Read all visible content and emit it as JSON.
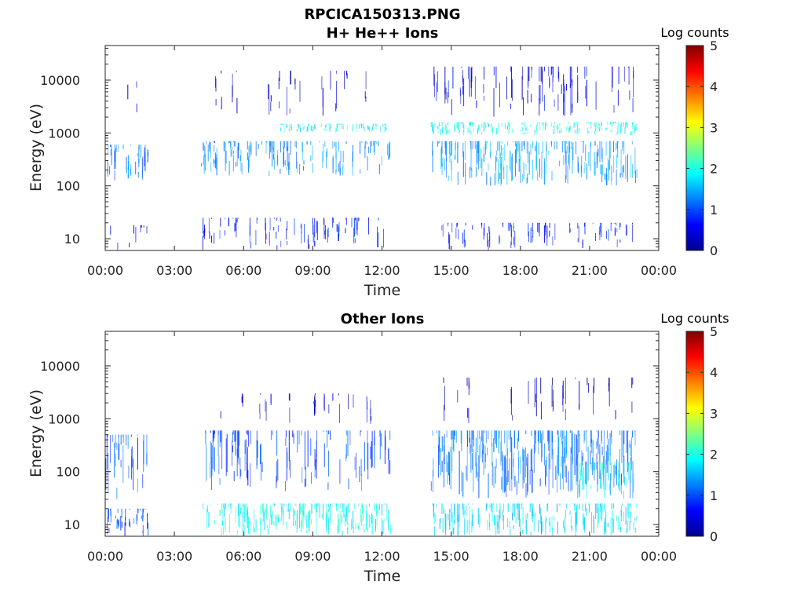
{
  "figure_title": "RPCICA150313.PNG",
  "colors": {
    "axis": "#262626",
    "background": "#ffffff"
  },
  "chart_data": [
    {
      "type": "heatmap",
      "title": "H+ He++ Ions",
      "xlabel": "Time",
      "ylabel": "Energy (eV)",
      "x_ticks": [
        "00:00",
        "03:00",
        "06:00",
        "09:00",
        "12:00",
        "15:00",
        "18:00",
        "21:00",
        "00:00"
      ],
      "x_range_hours": [
        0,
        24
      ],
      "y_scale": "log",
      "y_range_ev": [
        6,
        45000
      ],
      "y_ticks": [
        {
          "value": 10,
          "label": "10"
        },
        {
          "value": 100,
          "label": "100"
        },
        {
          "value": 1000,
          "label": "1000"
        },
        {
          "value": 10000,
          "label": "10000"
        }
      ],
      "colorbar": {
        "label": "Log counts",
        "ticks": [
          "0",
          "1",
          "2",
          "3",
          "4",
          "5"
        ],
        "range": [
          0,
          5
        ]
      },
      "data_gaps_hours": [
        [
          1.85,
          4.15
        ],
        [
          12.35,
          14.1
        ]
      ],
      "data_end_hour": 23.0,
      "bands": [
        {
          "t": [
            0.0,
            1.85
          ],
          "e": [
            6,
            18
          ],
          "logc": 0.6,
          "density": 0.25
        },
        {
          "t": [
            0.0,
            1.85
          ],
          "e": [
            120,
            600
          ],
          "logc": 1.2,
          "density": 0.6
        },
        {
          "t": [
            0.0,
            1.85
          ],
          "e": [
            1000,
            14000
          ],
          "logc": 0.4,
          "density": 0.15
        },
        {
          "t": [
            4.15,
            12.35
          ],
          "e": [
            6,
            25
          ],
          "logc": 0.7,
          "density": 0.4
        },
        {
          "t": [
            4.15,
            12.35
          ],
          "e": [
            150,
            700
          ],
          "logc": 1.3,
          "density": 0.55
        },
        {
          "t": [
            7.5,
            12.2
          ],
          "e": [
            1000,
            1500
          ],
          "logc": 1.9,
          "density": 0.5
        },
        {
          "t": [
            4.15,
            12.35
          ],
          "e": [
            2000,
            15000
          ],
          "logc": 0.3,
          "density": 0.15
        },
        {
          "t": [
            14.1,
            23.0
          ],
          "e": [
            6,
            20
          ],
          "logc": 0.7,
          "density": 0.35
        },
        {
          "t": [
            14.1,
            23.0
          ],
          "e": [
            100,
            700
          ],
          "logc": 1.4,
          "density": 0.7
        },
        {
          "t": [
            14.1,
            23.0
          ],
          "e": [
            900,
            1600
          ],
          "logc": 1.9,
          "density": 0.6
        },
        {
          "t": [
            14.1,
            23.0
          ],
          "e": [
            2000,
            18000
          ],
          "logc": 0.5,
          "density": 0.35
        }
      ]
    },
    {
      "type": "heatmap",
      "title": "Other Ions",
      "xlabel": "Time",
      "ylabel": "Energy (eV)",
      "x_ticks": [
        "00:00",
        "03:00",
        "06:00",
        "09:00",
        "12:00",
        "15:00",
        "18:00",
        "21:00",
        "00:00"
      ],
      "x_range_hours": [
        0,
        24
      ],
      "y_scale": "log",
      "y_range_ev": [
        6,
        45000
      ],
      "y_ticks": [
        {
          "value": 10,
          "label": "10"
        },
        {
          "value": 100,
          "label": "100"
        },
        {
          "value": 1000,
          "label": "1000"
        },
        {
          "value": 10000,
          "label": "10000"
        }
      ],
      "colorbar": {
        "label": "Log counts",
        "ticks": [
          "0",
          "1",
          "2",
          "3",
          "4",
          "5"
        ],
        "range": [
          0,
          5
        ]
      },
      "data_gaps_hours": [
        [
          1.85,
          4.15
        ],
        [
          12.35,
          14.1
        ]
      ],
      "data_end_hour": 23.0,
      "bands": [
        {
          "t": [
            0.0,
            1.85
          ],
          "e": [
            6,
            20
          ],
          "logc": 1.0,
          "density": 0.7
        },
        {
          "t": [
            0.0,
            1.85
          ],
          "e": [
            30,
            500
          ],
          "logc": 1.0,
          "density": 0.55
        },
        {
          "t": [
            4.15,
            12.35
          ],
          "e": [
            6,
            25
          ],
          "logc": 1.9,
          "density": 0.8
        },
        {
          "t": [
            4.15,
            12.35
          ],
          "e": [
            40,
            600
          ],
          "logc": 1.0,
          "density": 0.5
        },
        {
          "t": [
            4.15,
            12.35
          ],
          "e": [
            800,
            3000
          ],
          "logc": 0.4,
          "density": 0.15
        },
        {
          "t": [
            14.1,
            23.0
          ],
          "e": [
            6,
            25
          ],
          "logc": 1.7,
          "density": 0.8
        },
        {
          "t": [
            14.1,
            23.0
          ],
          "e": [
            30,
            600
          ],
          "logc": 1.2,
          "density": 0.85
        },
        {
          "t": [
            20.5,
            23.0
          ],
          "e": [
            30,
            150
          ],
          "logc": 1.9,
          "density": 0.6
        },
        {
          "t": [
            14.1,
            23.0
          ],
          "e": [
            800,
            6000
          ],
          "logc": 0.3,
          "density": 0.12
        }
      ]
    }
  ]
}
